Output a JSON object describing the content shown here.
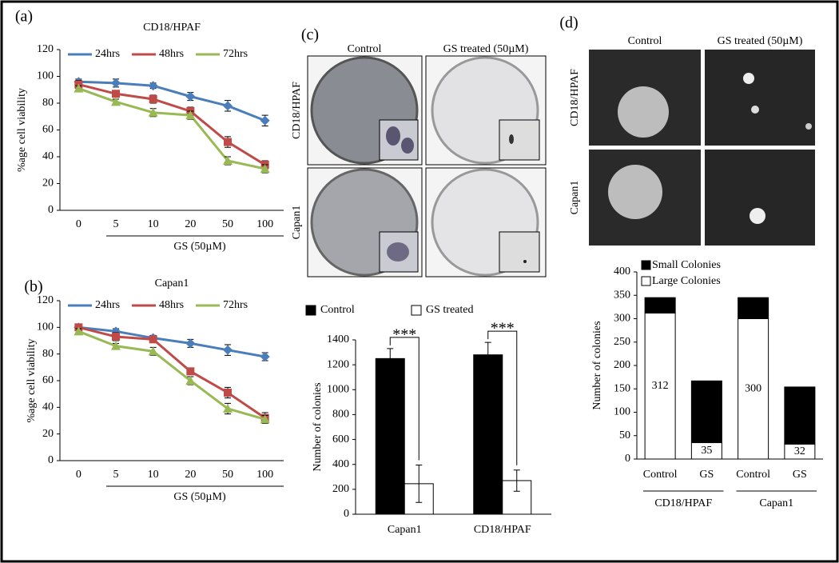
{
  "chart_data": [
    {
      "type": "line",
      "panel": "(a)",
      "title": "CD18/HPAF",
      "ylabel": "%age cell viability",
      "xlabel": "GS (50µM)",
      "categories": [
        "0",
        "5",
        "10",
        "20",
        "50",
        "100"
      ],
      "ylim": [
        0,
        120
      ],
      "yticks": [
        0,
        20,
        40,
        60,
        80,
        100,
        120
      ],
      "series": [
        {
          "name": "24hrs",
          "color": "#4a7ebb",
          "values": [
            96,
            95,
            93,
            85,
            78,
            67
          ],
          "errors": [
            2,
            3,
            2,
            3,
            4,
            4
          ]
        },
        {
          "name": "48hrs",
          "color": "#be4b48",
          "values": [
            94,
            87,
            83,
            74,
            51,
            34
          ],
          "errors": [
            3,
            2,
            3,
            3,
            4,
            3
          ]
        },
        {
          "name": "72hrs",
          "color": "#98b954",
          "values": [
            91,
            81,
            73,
            71,
            37,
            31
          ],
          "errors": [
            2,
            2,
            3,
            3,
            3,
            3
          ]
        }
      ]
    },
    {
      "type": "line",
      "panel": "(b)",
      "title": "Capan1",
      "ylabel": "%age cell viability",
      "xlabel": "GS (50µM)",
      "categories": [
        "0",
        "5",
        "10",
        "20",
        "50",
        "100"
      ],
      "ylim": [
        0,
        120
      ],
      "yticks": [
        0,
        20,
        40,
        60,
        80,
        100,
        120
      ],
      "series": [
        {
          "name": "24hrs",
          "color": "#4a7ebb",
          "values": [
            100,
            97,
            92,
            88,
            83,
            78
          ],
          "errors": [
            2,
            2,
            2,
            3,
            4,
            3
          ]
        },
        {
          "name": "48hrs",
          "color": "#be4b48",
          "values": [
            100,
            93,
            91,
            67,
            51,
            32
          ],
          "errors": [
            2,
            3,
            2,
            2,
            4,
            4
          ]
        },
        {
          "name": "72hrs",
          "color": "#98b954",
          "values": [
            97,
            86,
            82,
            60,
            39,
            31
          ],
          "errors": [
            2,
            2,
            3,
            3,
            4,
            3
          ]
        }
      ]
    },
    {
      "type": "bar",
      "panel": "(c)",
      "photo_columns": [
        "Control",
        "GS treated  (50µM)"
      ],
      "photo_rows": [
        "CD18/HPAF",
        "Capan1"
      ],
      "ylabel": "Number of colonies",
      "categories": [
        "Capan1",
        "CD18/HPAF"
      ],
      "ylim": [
        0,
        1400
      ],
      "yticks": [
        0,
        200,
        400,
        600,
        800,
        1000,
        1200,
        1400
      ],
      "annotations": [
        "***",
        "***"
      ],
      "series": [
        {
          "name": "Control",
          "color": "#000000",
          "values": [
            1250,
            1280
          ],
          "errors": [
            80,
            100
          ]
        },
        {
          "name": "GS treated",
          "color": "#ffffff",
          "values": [
            245,
            270
          ],
          "errors": [
            150,
            85
          ]
        }
      ]
    },
    {
      "type": "stacked",
      "panel": "(d)",
      "photo_columns": [
        "Control",
        "GS treated  (50µM)"
      ],
      "photo_rows": [
        "CD18/HPAF",
        "Capan1"
      ],
      "ylabel": "Number of colonies",
      "categories": [
        "Control",
        "GS",
        "Control",
        "GS"
      ],
      "groups": [
        "CD18/HPAF",
        "Capan1"
      ],
      "ylim": [
        0,
        400
      ],
      "yticks": [
        0,
        50,
        100,
        150,
        200,
        250,
        300,
        350,
        400
      ],
      "series": [
        {
          "name": "Large Colonies",
          "color": "#ffffff",
          "values": [
            312,
            35,
            300,
            32
          ],
          "show_values": true
        },
        {
          "name": "Small Colonies",
          "color": "#000000",
          "values": [
            33,
            132,
            45,
            122
          ]
        }
      ]
    }
  ]
}
